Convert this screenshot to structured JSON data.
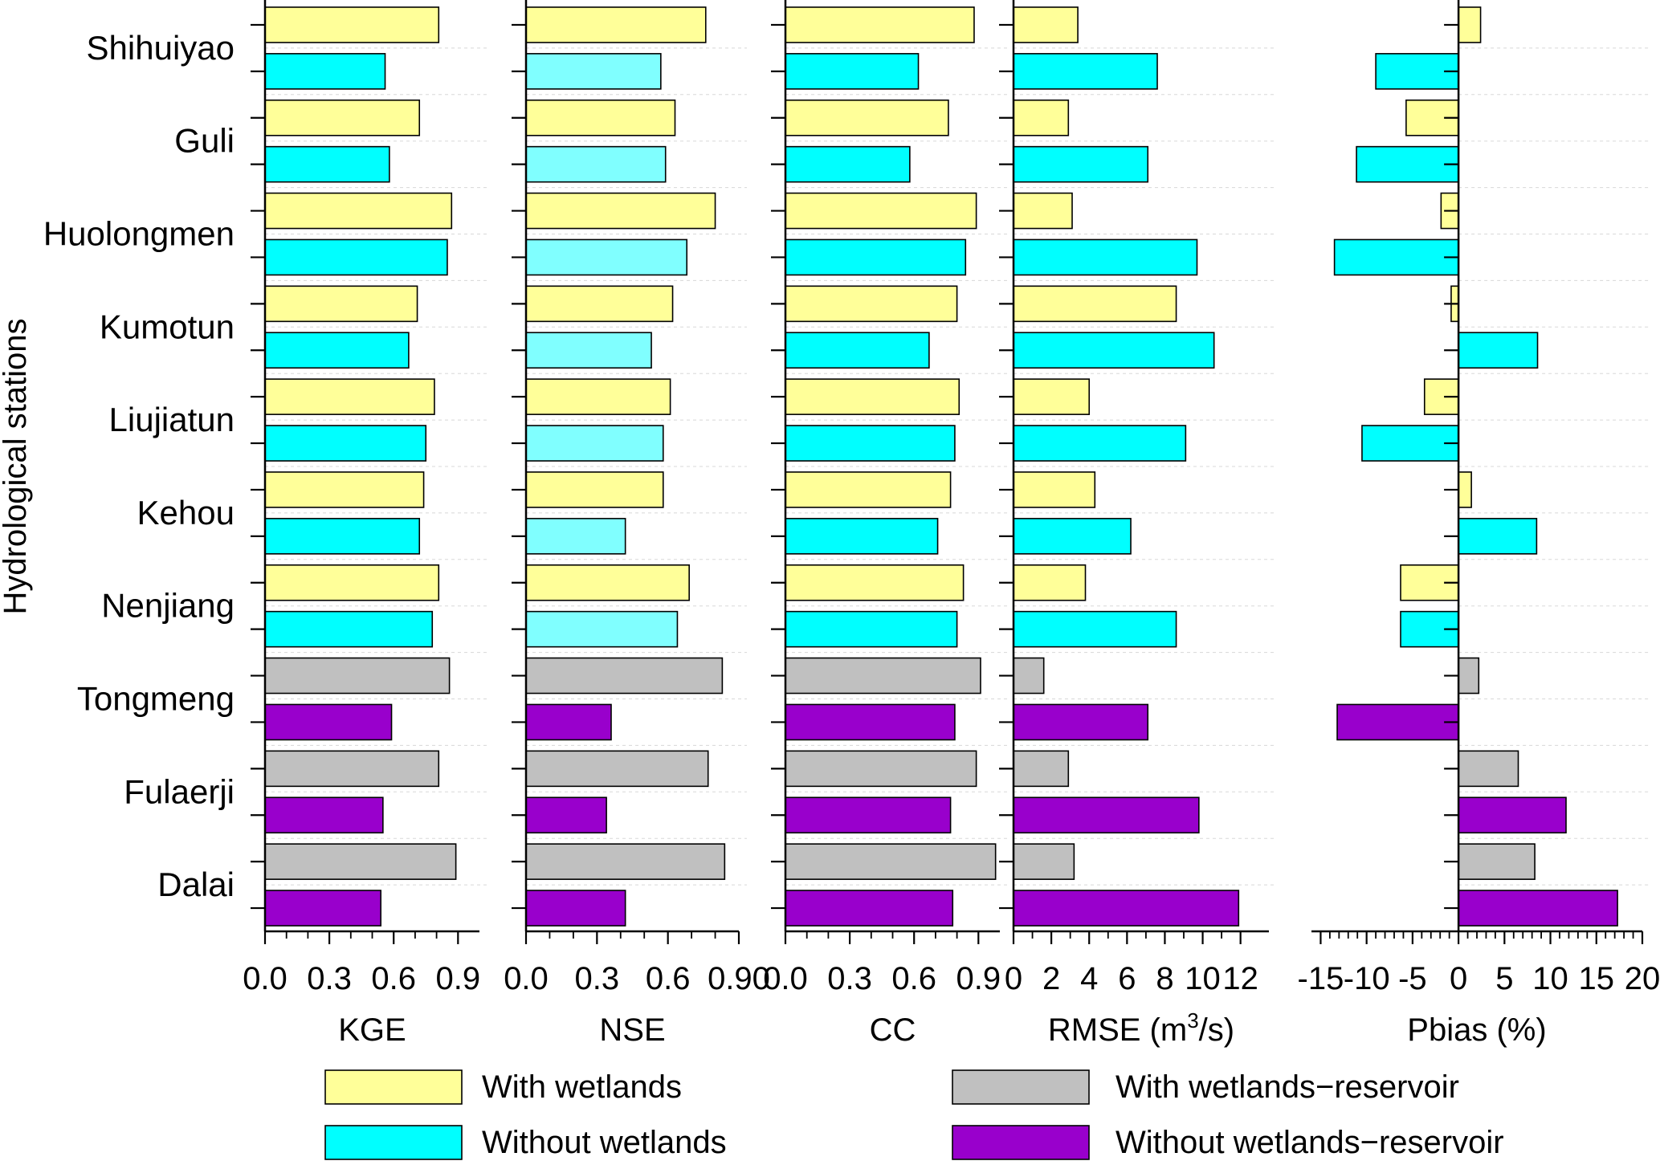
{
  "chart_data": {
    "type": "bar",
    "orientation": "horizontal",
    "ylabel": "Hydrological stations",
    "stations": [
      "Shihuiyao",
      "Guli",
      "Huolongmen",
      "Kumotun",
      "Liujiatun",
      "Kehou",
      "Nenjiang",
      "Tongmeng",
      "Fulaerji",
      "Dalai"
    ],
    "legend": {
      "placement": "bottom",
      "entries": [
        {
          "key": "with",
          "group": "wetlands",
          "label": "With wetlands",
          "color": "#ffff99"
        },
        {
          "key": "without",
          "group": "wetlands",
          "label": "Without wetlands",
          "color": "#00ffff"
        },
        {
          "key": "with",
          "group": "reservoir",
          "label": "With wetlands−reservoir",
          "color": "#c0c0c0"
        },
        {
          "key": "without",
          "group": "reservoir",
          "label": "Without wetlands−reservoir",
          "color": "#9900cc"
        }
      ]
    },
    "colors": {
      "wetlands_with": "#ffff99",
      "wetlands_without": "#00ffff",
      "nse_wetlands_without": "#80ffff",
      "reservoir_with": "#c0c0c0",
      "reservoir_without": "#9900cc"
    },
    "station_groups": [
      "wetlands",
      "wetlands",
      "wetlands",
      "wetlands",
      "wetlands",
      "wetlands",
      "wetlands",
      "reservoir",
      "reservoir",
      "reservoir"
    ],
    "panels": [
      {
        "metric": "KGE",
        "xlabel": "KGE",
        "xlim": [
          0,
          1
        ],
        "ticks": [
          0.0,
          0.3,
          0.6,
          0.9
        ],
        "tick_labels": [
          "0.0",
          "0.3",
          "0.6",
          "0.9"
        ],
        "with": [
          0.81,
          0.72,
          0.87,
          0.71,
          0.79,
          0.74,
          0.81,
          0.86,
          0.81,
          0.89
        ],
        "without": [
          0.56,
          0.58,
          0.85,
          0.67,
          0.75,
          0.72,
          0.78,
          0.59,
          0.55,
          0.54
        ]
      },
      {
        "metric": "NSE",
        "xlabel": "NSE",
        "xlim": [
          0,
          0.9
        ],
        "ticks": [
          0.0,
          0.3,
          0.6,
          0.9
        ],
        "tick_labels": [
          "0.0",
          "0.3",
          "0.6",
          "0.90"
        ],
        "with": [
          0.76,
          0.63,
          0.8,
          0.62,
          0.61,
          0.58,
          0.69,
          0.83,
          0.77,
          0.84
        ],
        "without": [
          0.57,
          0.59,
          0.68,
          0.53,
          0.58,
          0.42,
          0.64,
          0.36,
          0.34,
          0.42
        ]
      },
      {
        "metric": "CC",
        "xlabel": "CC",
        "xlim": [
          0,
          1
        ],
        "ticks": [
          0.0,
          0.3,
          0.6,
          0.9
        ],
        "tick_labels": [
          "0.0",
          "0.3",
          "0.6",
          "0.9"
        ],
        "with": [
          0.88,
          0.76,
          0.89,
          0.8,
          0.81,
          0.77,
          0.83,
          0.91,
          0.89,
          0.98
        ],
        "without": [
          0.62,
          0.58,
          0.84,
          0.67,
          0.79,
          0.71,
          0.8,
          0.79,
          0.77,
          0.78
        ]
      },
      {
        "metric": "RMSE",
        "xlabel": "RMSE (m",
        "xlabel_sup": "3",
        "xlabel_tail": "/s)",
        "xlim": [
          0,
          13.5
        ],
        "ticks": [
          0,
          2,
          4,
          6,
          8,
          10,
          12
        ],
        "tick_labels": [
          "0",
          "2",
          "4",
          "6",
          "8",
          "10",
          "12"
        ],
        "with": [
          3.4,
          2.9,
          3.1,
          8.6,
          4.0,
          4.3,
          3.8,
          1.6,
          2.9,
          3.2
        ],
        "without": [
          7.6,
          7.1,
          9.7,
          10.6,
          9.1,
          6.2,
          8.6,
          7.1,
          9.8,
          11.9
        ]
      },
      {
        "metric": "Pbias",
        "xlabel": "Pbias (%)",
        "xlim": [
          -16,
          20
        ],
        "ticks": [
          -15,
          -10,
          -5,
          0,
          5,
          10,
          15,
          20
        ],
        "tick_labels": [
          "-15",
          "-10",
          "-5",
          "0",
          "5",
          "10",
          "15",
          "20"
        ],
        "with": [
          2.4,
          -5.7,
          -1.9,
          -0.8,
          -3.7,
          1.4,
          -6.3,
          2.2,
          6.5,
          8.3
        ],
        "without": [
          -9.0,
          -11.1,
          -13.5,
          8.6,
          -10.5,
          8.5,
          -6.3,
          -13.2,
          11.7,
          17.3
        ]
      }
    ]
  }
}
